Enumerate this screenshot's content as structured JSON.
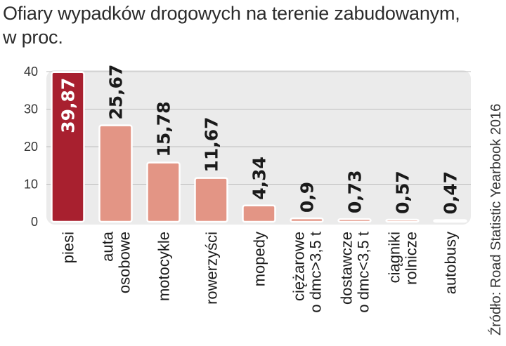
{
  "title_line1": "Ofiary wypadków drogowych na terenie zabudowanym,",
  "title_line2": "w proc.",
  "source": "Źródło: Road Statistic Yearbook 2016",
  "colors": {
    "highlight": "#a8202f",
    "bar": "#e39585",
    "panel": "#ebebeb",
    "grid": "#bdbdbd"
  },
  "chart_data": {
    "type": "bar",
    "title": "Ofiary wypadków drogowych na terenie zabudowanym, w proc.",
    "categories": [
      [
        "piesi"
      ],
      [
        "auta",
        "osobowe"
      ],
      [
        "motocykle"
      ],
      [
        "rowerzyści"
      ],
      [
        "mopedy"
      ],
      [
        "ciężarowe",
        "o dmc>3,5 t"
      ],
      [
        "dostawcze",
        "o dmc<3,5 t"
      ],
      [
        "ciągniki",
        "rolnicze"
      ],
      [
        "autobusy"
      ]
    ],
    "values": [
      39.87,
      25.67,
      15.78,
      11.67,
      4.34,
      0.9,
      0.73,
      0.57,
      0.47
    ],
    "value_labels": [
      "39,87",
      "25,67",
      "15,78",
      "11,67",
      "4,34",
      "0,9",
      "0,73",
      "0,57",
      "0,47"
    ],
    "highlight_index": 0,
    "yticks": [
      0,
      10,
      20,
      30,
      40
    ],
    "ylim": [
      0,
      40
    ],
    "grid": true,
    "legend": "none"
  }
}
